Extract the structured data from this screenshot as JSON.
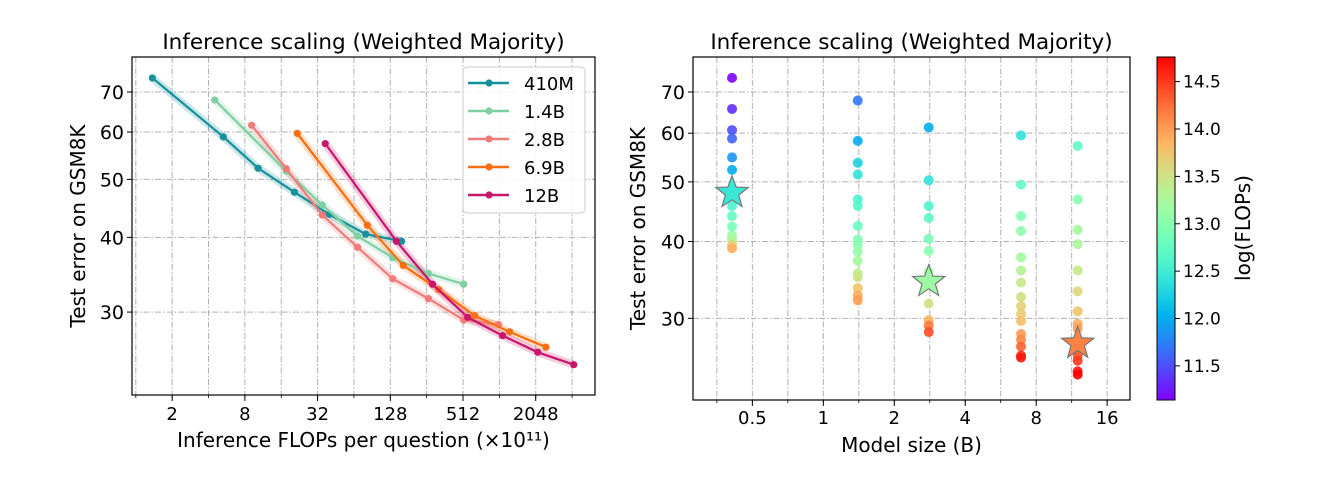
{
  "chart_data": [
    {
      "type": "line",
      "title": "Inference scaling (Weighted Majority)",
      "xlabel": "Inference FLOPs per question (×10¹¹)",
      "ylabel": "Test error on GSM8K",
      "xscale": "log2",
      "yscale": "log",
      "xlim": [
        0.93,
        6340
      ],
      "ylim": [
        21.8,
        80.1
      ],
      "xticks": [
        "2",
        "8",
        "32",
        "128",
        "512",
        "2048"
      ],
      "yticks": [
        "30",
        "40",
        "50",
        "60",
        "70"
      ],
      "grid": true,
      "legend": "top-right",
      "series": [
        {
          "name": "410M",
          "color": "#16919c",
          "x": [
            1.37,
            5.3,
            10.3,
            20.6,
            40,
            80,
            159
          ],
          "y": [
            73.9,
            58.9,
            52.2,
            47.6,
            43.7,
            40.5,
            39.4
          ]
        },
        {
          "name": "1.4B",
          "color": "#7ecfa2",
          "x": [
            4.5,
            17.6,
            35,
            68.6,
            134,
            265,
            519
          ],
          "y": [
            67.9,
            51.6,
            45.3,
            40.2,
            37.0,
            34.8,
            33.4
          ]
        },
        {
          "name": "2.8B",
          "color": "#f07b78",
          "x": [
            9.1,
            17.6,
            35,
            68.6,
            134,
            265,
            519,
            1010
          ],
          "y": [
            61.6,
            52.1,
            43.6,
            38.5,
            34.1,
            31.6,
            29.1,
            28.6
          ]
        },
        {
          "name": "6.9B",
          "color": "#fa6e0f",
          "x": [
            21.7,
            82.7,
            164,
            322,
            639,
            1245,
            2490
          ],
          "y": [
            59.7,
            41.9,
            35.9,
            32.7,
            29.6,
            27.8,
            26.2
          ]
        },
        {
          "name": "12B",
          "color": "#c8166b",
          "x": [
            37,
            144,
            286,
            560,
            1090,
            2130,
            4230
          ],
          "y": [
            57.4,
            39.4,
            33.4,
            29.4,
            27.4,
            25.7,
            24.5
          ]
        }
      ]
    },
    {
      "type": "scatter",
      "title": "Inference scaling (Weighted Majority)",
      "xlabel": "Model size (B)",
      "ylabel": "Test error on GSM8K",
      "xscale": "log2",
      "yscale": "log",
      "xlim": [
        0.28,
        20
      ],
      "ylim": [
        22.1,
        79.8
      ],
      "xticks": [
        "0.5",
        "1",
        "2",
        "4",
        "8",
        "16"
      ],
      "yticks": [
        "30",
        "40",
        "50",
        "60",
        "70"
      ],
      "grid": true,
      "colormap": "rainbow",
      "colorbar_label": "log(FLOPs)",
      "colorbar_range": [
        11.14,
        14.76
      ],
      "colorbar_ticks": [
        "11.5",
        "12.0",
        "12.5",
        "13.0",
        "13.5",
        "14.0",
        "14.5"
      ],
      "series": [
        {
          "x": 0.41,
          "y": [
            73.8,
            65.7,
            60.7,
            58.8,
            54.8,
            52.3,
            45.7,
            44.0,
            42.3,
            40.9,
            40.4,
            39.5,
            39.0
          ],
          "c": [
            11.15,
            11.35,
            11.5,
            11.6,
            11.85,
            12.0,
            12.6,
            12.75,
            12.9,
            13.1,
            13.3,
            13.6,
            13.9
          ],
          "star": {
            "y": 48.0,
            "c": 12.45
          }
        },
        {
          "x": 1.4,
          "y": [
            67.8,
            58.3,
            53.7,
            51.4,
            46.8,
            45.7,
            42.4,
            40.3,
            39.5,
            38.5,
            37.2,
            35.5,
            35.0,
            33.6,
            32.7,
            32.1
          ],
          "c": [
            11.7,
            12.0,
            12.25,
            12.4,
            12.6,
            12.65,
            12.8,
            12.95,
            13.0,
            13.1,
            13.2,
            13.4,
            13.5,
            13.75,
            13.9,
            14.0
          ]
        },
        {
          "x": 2.8,
          "y": [
            61.3,
            50.3,
            45.7,
            43.7,
            40.4,
            38.6,
            35.7,
            31.7,
            29.8,
            29.2,
            28.5
          ],
          "c": [
            12.0,
            12.4,
            12.6,
            12.7,
            12.9,
            13.0,
            13.2,
            13.5,
            13.85,
            14.2,
            14.4
          ],
          "star": {
            "y": 34.4,
            "c": 13.15
          }
        },
        {
          "x": 6.9,
          "y": [
            59.5,
            49.5,
            44.0,
            41.6,
            37.7,
            35.9,
            34.3,
            32.5,
            31.4,
            30.5,
            29.7,
            28.3,
            27.7,
            27.0,
            26.1,
            25.9
          ],
          "c": [
            12.4,
            12.75,
            12.95,
            13.05,
            13.2,
            13.3,
            13.45,
            13.55,
            13.65,
            13.7,
            13.8,
            14.0,
            14.1,
            14.3,
            14.55,
            14.65
          ]
        },
        {
          "x": 12,
          "y": [
            57.2,
            46.8,
            41.8,
            39.6,
            35.9,
            33.2,
            30.8,
            29.4,
            28.9,
            26.1,
            25.6,
            24.6,
            24.3
          ],
          "c": [
            12.75,
            13.0,
            13.2,
            13.25,
            13.45,
            13.6,
            13.75,
            13.9,
            14.0,
            14.4,
            14.5,
            14.7,
            14.75
          ],
          "star": {
            "y": 27.3,
            "c": 14.15
          }
        }
      ]
    }
  ]
}
